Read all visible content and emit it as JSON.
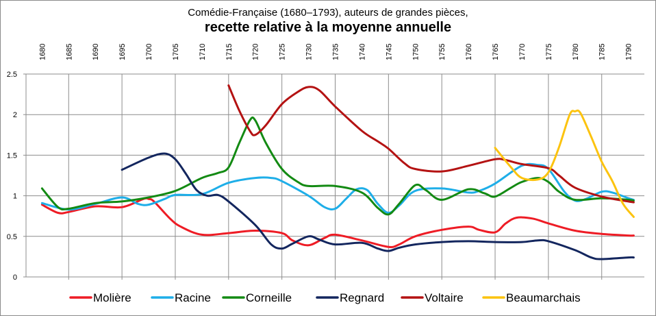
{
  "chart_data": {
    "type": "line",
    "title": "Comédie-Française (1680–1793),  auteurs de grandes pièces,",
    "subtitle": "recette relative à la moyenne annuelle",
    "xlabel": "",
    "ylabel": "",
    "xlim": [
      1677,
      1793
    ],
    "ylim": [
      0,
      2.5
    ],
    "x_ticks": [
      "1680",
      "1685",
      "1690",
      "1695",
      "1700",
      "1705",
      "1710",
      "1715",
      "1720",
      "1725",
      "1730",
      "1735",
      "1740",
      "1745",
      "1750",
      "1755",
      "1760",
      "1765",
      "1770",
      "1775",
      "1780",
      "1785",
      "1790"
    ],
    "y_ticks": [
      "0",
      "0.5",
      "1",
      "1.5",
      "2",
      "2.5"
    ],
    "grid": "vertical every 5 years, horizontal at 0.5",
    "legend_position": "bottom",
    "series": [
      {
        "name": "Molière",
        "color": "#ee1c25",
        "points": [
          [
            1680,
            0.89
          ],
          [
            1683,
            0.79
          ],
          [
            1685,
            0.8
          ],
          [
            1690,
            0.87
          ],
          [
            1695,
            0.86
          ],
          [
            1699,
            0.96
          ],
          [
            1700,
            0.96
          ],
          [
            1701,
            0.93
          ],
          [
            1704,
            0.72
          ],
          [
            1706,
            0.62
          ],
          [
            1710,
            0.52
          ],
          [
            1715,
            0.54
          ],
          [
            1720,
            0.57
          ],
          [
            1725,
            0.54
          ],
          [
            1727,
            0.45
          ],
          [
            1730,
            0.39
          ],
          [
            1733,
            0.48
          ],
          [
            1735,
            0.52
          ],
          [
            1740,
            0.45
          ],
          [
            1745,
            0.37
          ],
          [
            1747,
            0.4
          ],
          [
            1750,
            0.5
          ],
          [
            1755,
            0.58
          ],
          [
            1760,
            0.62
          ],
          [
            1762,
            0.58
          ],
          [
            1765,
            0.55
          ],
          [
            1767,
            0.66
          ],
          [
            1769,
            0.73
          ],
          [
            1772,
            0.72
          ],
          [
            1775,
            0.66
          ],
          [
            1780,
            0.57
          ],
          [
            1785,
            0.53
          ],
          [
            1790,
            0.51
          ],
          [
            1791,
            0.51
          ]
        ]
      },
      {
        "name": "Racine",
        "color": "#1eaee8",
        "points": [
          [
            1680,
            0.91
          ],
          [
            1685,
            0.83
          ],
          [
            1690,
            0.9
          ],
          [
            1695,
            0.98
          ],
          [
            1698,
            0.9
          ],
          [
            1700,
            0.89
          ],
          [
            1703,
            0.96
          ],
          [
            1705,
            1.01
          ],
          [
            1710,
            1.02
          ],
          [
            1715,
            1.16
          ],
          [
            1720,
            1.22
          ],
          [
            1723,
            1.22
          ],
          [
            1725,
            1.18
          ],
          [
            1730,
            1.0
          ],
          [
            1733,
            0.86
          ],
          [
            1735,
            0.84
          ],
          [
            1737,
            0.96
          ],
          [
            1739,
            1.08
          ],
          [
            1741,
            1.07
          ],
          [
            1743,
            0.9
          ],
          [
            1745,
            0.79
          ],
          [
            1747,
            0.88
          ],
          [
            1750,
            1.06
          ],
          [
            1755,
            1.09
          ],
          [
            1760,
            1.04
          ],
          [
            1762,
            1.06
          ],
          [
            1765,
            1.15
          ],
          [
            1770,
            1.37
          ],
          [
            1773,
            1.38
          ],
          [
            1775,
            1.33
          ],
          [
            1778,
            1.05
          ],
          [
            1780,
            0.94
          ],
          [
            1782,
            0.96
          ],
          [
            1785,
            1.05
          ],
          [
            1787,
            1.04
          ],
          [
            1790,
            0.97
          ],
          [
            1791,
            0.95
          ]
        ]
      },
      {
        "name": "Corneille",
        "color": "#138a13",
        "points": [
          [
            1680,
            1.09
          ],
          [
            1683,
            0.86
          ],
          [
            1685,
            0.84
          ],
          [
            1690,
            0.91
          ],
          [
            1695,
            0.93
          ],
          [
            1700,
            0.98
          ],
          [
            1705,
            1.06
          ],
          [
            1710,
            1.22
          ],
          [
            1713,
            1.28
          ],
          [
            1715,
            1.35
          ],
          [
            1717,
            1.65
          ],
          [
            1719,
            1.93
          ],
          [
            1720,
            1.93
          ],
          [
            1722,
            1.65
          ],
          [
            1725,
            1.33
          ],
          [
            1728,
            1.17
          ],
          [
            1730,
            1.12
          ],
          [
            1735,
            1.12
          ],
          [
            1740,
            1.04
          ],
          [
            1743,
            0.85
          ],
          [
            1745,
            0.77
          ],
          [
            1747,
            0.9
          ],
          [
            1750,
            1.13
          ],
          [
            1752,
            1.07
          ],
          [
            1755,
            0.95
          ],
          [
            1760,
            1.08
          ],
          [
            1763,
            1.03
          ],
          [
            1765,
            0.99
          ],
          [
            1768,
            1.1
          ],
          [
            1770,
            1.17
          ],
          [
            1773,
            1.22
          ],
          [
            1775,
            1.17
          ],
          [
            1777,
            1.05
          ],
          [
            1780,
            0.95
          ],
          [
            1785,
            0.97
          ],
          [
            1790,
            0.95
          ],
          [
            1791,
            0.94
          ]
        ]
      },
      {
        "name": "Regnard",
        "color": "#13265e",
        "points": [
          [
            1695,
            1.32
          ],
          [
            1700,
            1.47
          ],
          [
            1703,
            1.52
          ],
          [
            1705,
            1.45
          ],
          [
            1707,
            1.27
          ],
          [
            1709,
            1.07
          ],
          [
            1711,
            1.0
          ],
          [
            1713,
            1.01
          ],
          [
            1715,
            0.93
          ],
          [
            1720,
            0.64
          ],
          [
            1723,
            0.4
          ],
          [
            1725,
            0.35
          ],
          [
            1727,
            0.41
          ],
          [
            1730,
            0.5
          ],
          [
            1732,
            0.46
          ],
          [
            1735,
            0.4
          ],
          [
            1740,
            0.42
          ],
          [
            1743,
            0.35
          ],
          [
            1745,
            0.32
          ],
          [
            1747,
            0.36
          ],
          [
            1750,
            0.4
          ],
          [
            1755,
            0.43
          ],
          [
            1760,
            0.44
          ],
          [
            1765,
            0.43
          ],
          [
            1770,
            0.43
          ],
          [
            1773,
            0.45
          ],
          [
            1775,
            0.44
          ],
          [
            1780,
            0.33
          ],
          [
            1783,
            0.24
          ],
          [
            1785,
            0.22
          ],
          [
            1790,
            0.24
          ],
          [
            1791,
            0.24
          ]
        ]
      },
      {
        "name": "Voltaire",
        "color": "#b41212",
        "points": [
          [
            1715,
            2.36
          ],
          [
            1717,
            2.05
          ],
          [
            1719,
            1.8
          ],
          [
            1720,
            1.75
          ],
          [
            1722,
            1.87
          ],
          [
            1725,
            2.13
          ],
          [
            1728,
            2.28
          ],
          [
            1730,
            2.34
          ],
          [
            1732,
            2.3
          ],
          [
            1735,
            2.1
          ],
          [
            1740,
            1.8
          ],
          [
            1743,
            1.67
          ],
          [
            1745,
            1.58
          ],
          [
            1748,
            1.4
          ],
          [
            1750,
            1.33
          ],
          [
            1755,
            1.3
          ],
          [
            1760,
            1.37
          ],
          [
            1765,
            1.45
          ],
          [
            1767,
            1.44
          ],
          [
            1770,
            1.39
          ],
          [
            1775,
            1.34
          ],
          [
            1777,
            1.25
          ],
          [
            1780,
            1.1
          ],
          [
            1785,
            0.99
          ],
          [
            1790,
            0.93
          ],
          [
            1791,
            0.92
          ]
        ]
      },
      {
        "name": "Beaumarchais",
        "color": "#fcc30f",
        "points": [
          [
            1765,
            1.59
          ],
          [
            1768,
            1.35
          ],
          [
            1770,
            1.22
          ],
          [
            1773,
            1.2
          ],
          [
            1775,
            1.29
          ],
          [
            1777,
            1.6
          ],
          [
            1779,
            2.0
          ],
          [
            1780,
            2.04
          ],
          [
            1781,
            2.02
          ],
          [
            1783,
            1.73
          ],
          [
            1785,
            1.42
          ],
          [
            1787,
            1.18
          ],
          [
            1789,
            0.9
          ],
          [
            1791,
            0.74
          ]
        ]
      }
    ]
  }
}
